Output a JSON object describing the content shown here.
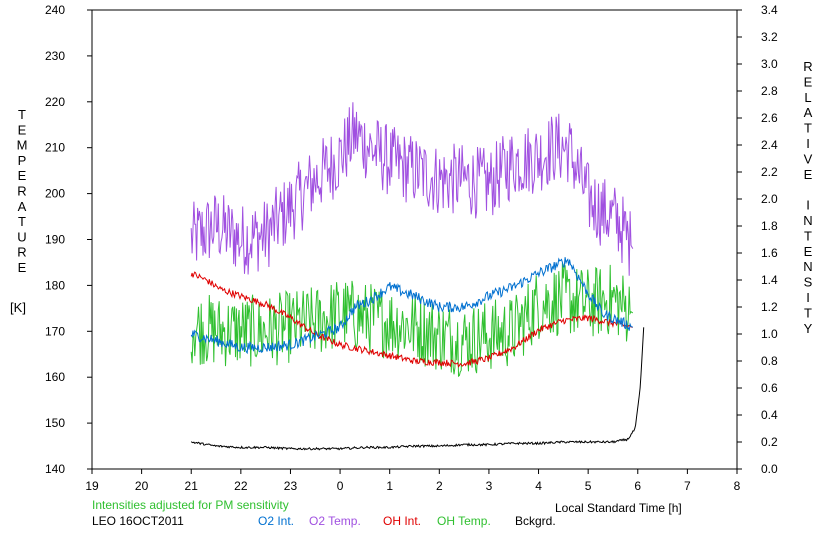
{
  "chart_data": {
    "type": "line",
    "xlabel": "Local Standard Time [h]",
    "ylabel_left_letters": [
      "T",
      "E",
      "M",
      "P",
      "E",
      "R",
      "A",
      "T",
      "U",
      "R",
      "E"
    ],
    "ylabel_left_unit": "[K]",
    "ylabel_right_letters": [
      "R",
      "E",
      "L",
      "A",
      "T",
      "I",
      "V",
      "E",
      "",
      "I",
      "N",
      "T",
      "E",
      "N",
      "S",
      "I",
      "T",
      "Y"
    ],
    "xlim": [
      19,
      32
    ],
    "x_ticks": [
      19,
      20,
      21,
      22,
      23,
      24,
      25,
      26,
      27,
      28,
      29,
      30,
      31,
      32
    ],
    "x_tick_labels": [
      "19",
      "20",
      "21",
      "22",
      "23",
      "0",
      "1",
      "2",
      "3",
      "4",
      "5",
      "6",
      "7",
      "8"
    ],
    "ylim_left": [
      140,
      240
    ],
    "y_left_ticks": [
      140,
      150,
      160,
      170,
      180,
      190,
      200,
      210,
      220,
      230,
      240
    ],
    "ylim_right": [
      0,
      3.4
    ],
    "y_right_ticks": [
      "0.0",
      "0.2",
      "0.4",
      "0.6",
      "0.8",
      "1.0",
      "1.2",
      "1.4",
      "1.6",
      "1.8",
      "2.0",
      "2.2",
      "2.4",
      "2.6",
      "2.8",
      "3.0",
      "3.2",
      "3.4"
    ],
    "note": "Intensities adjusted for PM sensitivity",
    "station": "LEO 16OCT2011",
    "legend_position": "bottom",
    "colors": {
      "o2_int": "#0070d0",
      "o2_temp": "#a050e0",
      "oh_int": "#e00000",
      "oh_temp": "#30c030",
      "bckgrd": "#000000",
      "note": "#30c030"
    },
    "series": [
      {
        "name": "O2 Int.",
        "axis": "right",
        "color_key": "o2_int",
        "noise": 0.04,
        "x": [
          21.0,
          21.5,
          22.0,
          22.5,
          23.0,
          23.5,
          24.0,
          24.3,
          24.6,
          25.0,
          25.5,
          26.0,
          26.5,
          27.0,
          27.5,
          28.0,
          28.3,
          28.6,
          29.0,
          29.3,
          29.6,
          29.9
        ],
        "y": [
          1.0,
          0.95,
          0.9,
          0.9,
          0.92,
          0.98,
          1.05,
          1.2,
          1.25,
          1.35,
          1.28,
          1.2,
          1.2,
          1.28,
          1.35,
          1.45,
          1.5,
          1.55,
          1.3,
          1.15,
          1.1,
          1.05
        ]
      },
      {
        "name": "O2 Temp.",
        "axis": "left",
        "color_key": "o2_temp",
        "noise": 8,
        "x": [
          21.0,
          21.5,
          22.0,
          22.5,
          23.0,
          23.5,
          24.0,
          24.3,
          24.6,
          25.0,
          25.5,
          26.0,
          26.5,
          27.0,
          27.5,
          28.0,
          28.3,
          28.6,
          29.0,
          29.3,
          29.6,
          29.9
        ],
        "y": [
          190,
          193,
          190,
          191,
          197,
          203,
          208,
          213,
          210,
          207,
          205,
          203,
          203,
          202,
          207,
          208,
          210,
          210,
          199,
          196,
          194,
          188
        ]
      },
      {
        "name": "OH Int.",
        "axis": "right",
        "color_key": "oh_int",
        "noise": 0.025,
        "x": [
          21.0,
          21.3,
          21.6,
          22.0,
          22.5,
          23.0,
          23.5,
          24.0,
          24.5,
          25.0,
          25.5,
          26.0,
          26.5,
          27.0,
          27.5,
          28.0,
          28.5,
          29.0,
          29.5,
          29.9
        ],
        "y": [
          1.45,
          1.4,
          1.33,
          1.28,
          1.22,
          1.12,
          1.0,
          0.92,
          0.88,
          0.84,
          0.8,
          0.79,
          0.78,
          0.82,
          0.9,
          1.03,
          1.1,
          1.12,
          1.08,
          1.05
        ]
      },
      {
        "name": "OH Temp.",
        "axis": "left",
        "color_key": "oh_temp",
        "noise": 8,
        "x": [
          21.0,
          21.5,
          22.0,
          22.5,
          23.0,
          23.5,
          24.0,
          24.5,
          25.0,
          25.5,
          26.0,
          26.5,
          27.0,
          27.5,
          28.0,
          28.5,
          29.0,
          29.5,
          29.9
        ],
        "y": [
          171,
          170,
          170,
          170,
          171,
          172,
          174,
          173,
          172,
          171,
          169,
          168,
          169,
          170,
          176,
          177,
          176,
          177,
          174
        ]
      },
      {
        "name": "Bckgrd.",
        "axis": "right",
        "color_key": "bckgrd",
        "noise": 0.008,
        "x": [
          21.0,
          21.5,
          22.0,
          22.5,
          23.0,
          23.5,
          24.0,
          24.5,
          25.0,
          25.5,
          26.0,
          26.5,
          27.0,
          27.5,
          28.0,
          28.5,
          29.0,
          29.5,
          29.8,
          29.95,
          30.05,
          30.12
        ],
        "y": [
          0.2,
          0.17,
          0.16,
          0.16,
          0.15,
          0.15,
          0.15,
          0.16,
          0.16,
          0.17,
          0.17,
          0.18,
          0.18,
          0.19,
          0.19,
          0.2,
          0.2,
          0.2,
          0.22,
          0.3,
          0.6,
          1.05
        ]
      }
    ]
  }
}
